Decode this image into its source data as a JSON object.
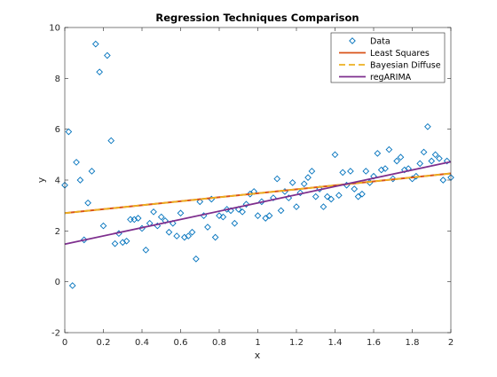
{
  "chart_data": {
    "type": "scatter",
    "title": "Regression Techniques Comparison",
    "xlabel": "x",
    "ylabel": "y",
    "xlim": [
      0,
      2
    ],
    "ylim": [
      -2,
      10
    ],
    "xticks": [
      "0",
      "0.2",
      "0.4",
      "0.6",
      "0.8",
      "1",
      "1.2",
      "1.4",
      "1.6",
      "1.8",
      "2"
    ],
    "yticks": [
      "-2",
      "0",
      "2",
      "4",
      "6",
      "8",
      "10"
    ],
    "grid": false,
    "legend_position": "top-right",
    "series": [
      {
        "name": "Data",
        "kind": "markers",
        "marker": "diamond",
        "color": "#0072BD",
        "x": [
          0.0,
          0.02,
          0.04,
          0.06,
          0.08,
          0.1,
          0.12,
          0.14,
          0.16,
          0.18,
          0.2,
          0.22,
          0.24,
          0.26,
          0.28,
          0.3,
          0.32,
          0.34,
          0.36,
          0.38,
          0.4,
          0.42,
          0.44,
          0.46,
          0.48,
          0.5,
          0.52,
          0.54,
          0.56,
          0.58,
          0.6,
          0.62,
          0.64,
          0.66,
          0.68,
          0.7,
          0.72,
          0.74,
          0.76,
          0.78,
          0.8,
          0.82,
          0.84,
          0.86,
          0.88,
          0.9,
          0.92,
          0.94,
          0.96,
          0.98,
          1.0,
          1.02,
          1.04,
          1.06,
          1.08,
          1.1,
          1.12,
          1.14,
          1.16,
          1.18,
          1.2,
          1.22,
          1.24,
          1.26,
          1.28,
          1.3,
          1.32,
          1.34,
          1.36,
          1.38,
          1.4,
          1.42,
          1.44,
          1.46,
          1.48,
          1.5,
          1.52,
          1.54,
          1.56,
          1.58,
          1.6,
          1.62,
          1.64,
          1.66,
          1.68,
          1.7,
          1.72,
          1.74,
          1.76,
          1.78,
          1.8,
          1.82,
          1.84,
          1.86,
          1.88,
          1.9,
          1.92,
          1.94,
          1.96,
          1.98,
          2.0
        ],
        "y": [
          3.8,
          5.9,
          -0.15,
          4.7,
          4.0,
          1.65,
          3.1,
          4.35,
          9.35,
          8.25,
          2.2,
          8.9,
          5.55,
          1.5,
          1.9,
          1.55,
          1.6,
          2.45,
          2.45,
          2.5,
          2.1,
          1.25,
          2.3,
          2.75,
          2.2,
          2.55,
          2.4,
          1.95,
          2.3,
          1.8,
          2.7,
          1.75,
          1.8,
          1.95,
          0.9,
          3.15,
          2.6,
          2.15,
          3.25,
          1.75,
          2.6,
          2.55,
          2.85,
          2.8,
          2.3,
          2.85,
          2.75,
          3.05,
          3.45,
          3.55,
          2.6,
          3.15,
          2.5,
          2.6,
          3.3,
          4.05,
          2.8,
          3.55,
          3.3,
          3.9,
          2.95,
          3.5,
          3.85,
          4.1,
          4.35,
          3.35,
          3.65,
          2.95,
          3.35,
          3.25,
          5.0,
          3.4,
          4.3,
          3.8,
          4.35,
          3.65,
          3.35,
          3.45,
          4.35,
          3.9,
          4.15,
          5.05,
          4.4,
          4.45,
          5.2,
          4.05,
          4.75,
          4.9,
          4.4,
          4.45,
          4.05,
          4.15,
          4.65,
          5.1,
          6.1,
          4.75,
          5.0,
          4.85,
          4.0,
          4.75,
          4.1
        ]
      },
      {
        "name": "Least Squares",
        "kind": "line",
        "color": "#D95319",
        "style": "solid",
        "intercept": 2.7,
        "slope": 0.78
      },
      {
        "name": "Bayesian Diffuse",
        "kind": "line",
        "color": "#EDB120",
        "style": "dashed",
        "intercept": 2.7,
        "slope": 0.78
      },
      {
        "name": "regARIMA",
        "kind": "line",
        "color": "#7E2F8E",
        "style": "solid",
        "intercept": 1.48,
        "slope": 1.62
      }
    ]
  }
}
